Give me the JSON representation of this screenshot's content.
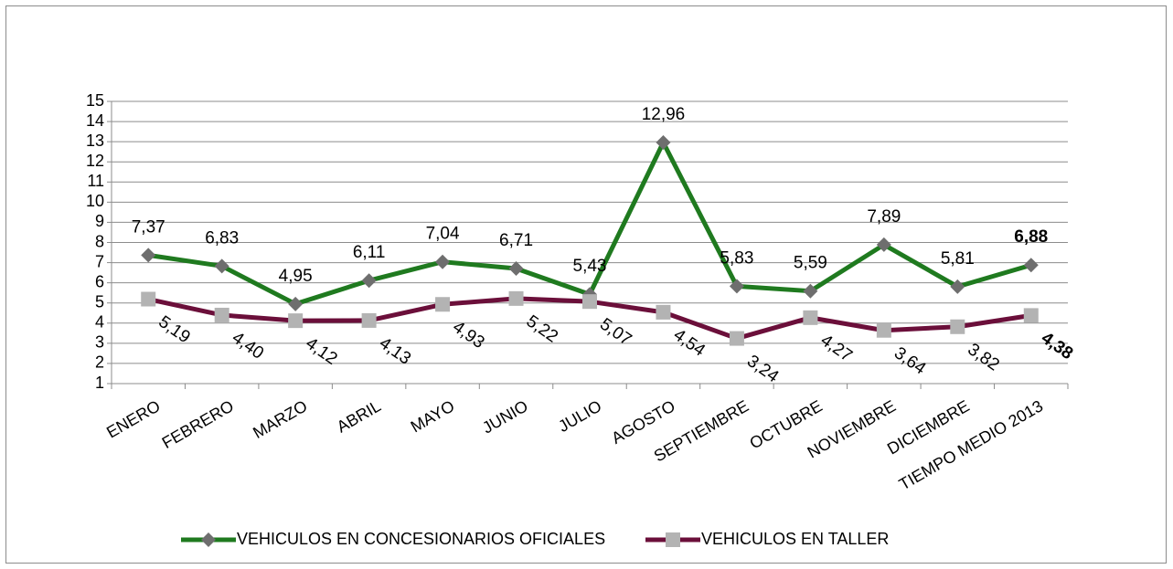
{
  "chart_data": {
    "type": "line",
    "categories": [
      "ENERO",
      "FEBRERO",
      "MARZO",
      "ABRIL",
      "MAYO",
      "JUNIO",
      "JULIO",
      "AGOSTO",
      "SEPTIEMBRE",
      "OCTUBRE",
      "NOVIEMBRE",
      "DICIEMBRE",
      "TIEMPO MEDIO 2013"
    ],
    "series": [
      {
        "name": "VEHICULOS EN CONCESIONARIOS OFICIALES",
        "color": "#1f7a1f",
        "marker": "diamond",
        "marker_color": "#6e6e6e",
        "values": [
          7.37,
          6.83,
          4.95,
          6.11,
          7.04,
          6.71,
          5.43,
          12.96,
          5.83,
          5.59,
          7.89,
          5.81,
          6.88
        ],
        "value_labels": [
          "7,37",
          "6,83",
          "4,95",
          "6,11",
          "7,04",
          "6,71",
          "5,43",
          "12,96",
          "5,83",
          "5,59",
          "7,89",
          "5,81",
          "6,88"
        ]
      },
      {
        "name": "VEHICULOS EN TALLER",
        "color": "#6b0f3a",
        "marker": "square",
        "marker_color": "#b3b3b3",
        "values": [
          5.19,
          4.4,
          4.12,
          4.13,
          4.93,
          5.22,
          5.07,
          4.54,
          3.24,
          4.27,
          3.64,
          3.82,
          4.38
        ],
        "value_labels": [
          "5,19",
          "4,40",
          "4,12",
          "4,13",
          "4,93",
          "5,22",
          "5,07",
          "4,54",
          "3,24",
          "4,27",
          "3,64",
          "3,82",
          "4,38"
        ]
      }
    ],
    "highlight_last_label_color": "#ff0000",
    "ylim": [
      1,
      15
    ],
    "yticks": [
      1,
      2,
      3,
      4,
      5,
      6,
      7,
      8,
      9,
      10,
      11,
      12,
      13,
      14,
      15
    ],
    "grid": true,
    "legend": "bottom"
  }
}
